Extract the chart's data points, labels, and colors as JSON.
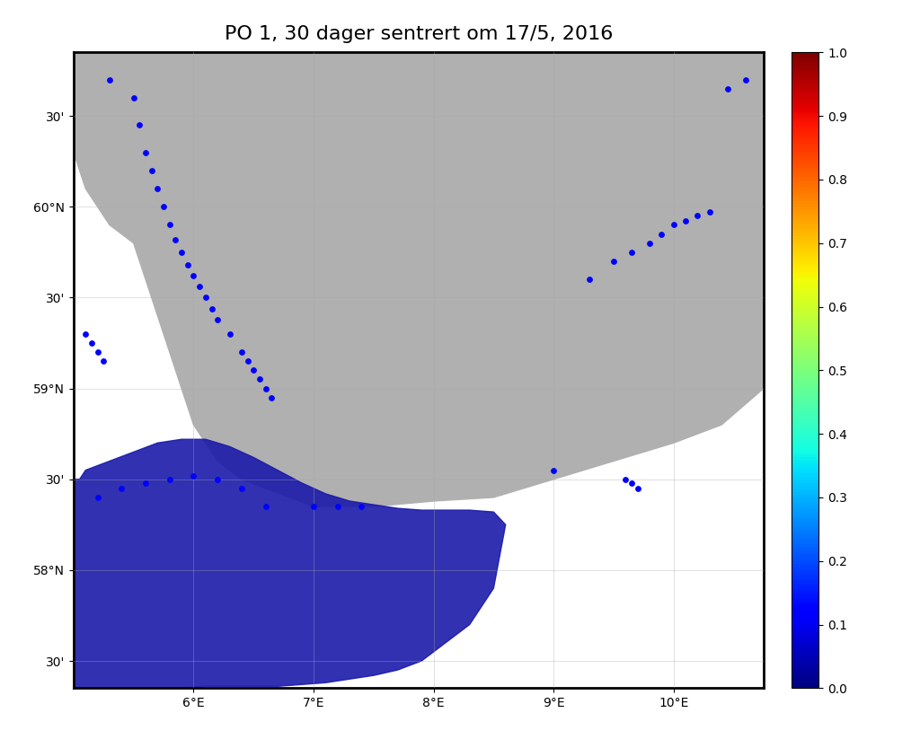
{
  "title": "PO 1, 30 dager sentrert om 17/5, 2016",
  "title_fontsize": 16,
  "lon_min": 5.0,
  "lon_max": 10.75,
  "lat_min": 57.35,
  "lat_max": 60.85,
  "lon_ticks": [
    6,
    7,
    8,
    9,
    10
  ],
  "lat_ticks": [
    57.5,
    58.0,
    58.5,
    59.0,
    59.5,
    60.0,
    60.5
  ],
  "lat_tick_labels": [
    "30'",
    "58°N",
    "30'",
    "59°N",
    "30'",
    "60°N",
    "30'"
  ],
  "lon_tick_labels": [
    "6°E",
    "7°E",
    "8°E",
    "9°E",
    "10°E"
  ],
  "land_color": "#b0b0b0",
  "sea_color": "#ffffff",
  "ocean_color": "#ffffff",
  "blue_region_color": "#1a1aaa",
  "colorbar_label": "",
  "colorbar_ticks": [
    0,
    0.1,
    0.2,
    0.3,
    0.4,
    0.5,
    0.6,
    0.7,
    0.8,
    0.9,
    1.0
  ],
  "farm_dot_color": "blue",
  "farm_dot_size": 15,
  "background_color": "#ffffff",
  "map_background": "#ffffff",
  "grid_color": "#aaaaaa",
  "grid_alpha": 0.5,
  "border_color": "black",
  "colormap": "jet"
}
